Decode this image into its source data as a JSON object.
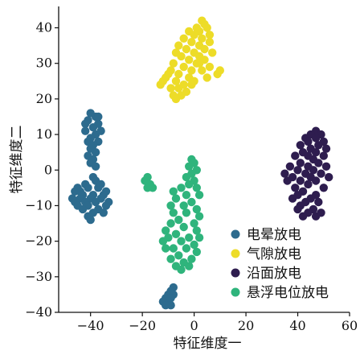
{
  "chart_data": {
    "type": "scatter",
    "title": "",
    "xlabel": "特征维度一",
    "ylabel": "特征维度二",
    "xlim": [
      -52,
      60
    ],
    "ylim": [
      -40,
      46
    ],
    "xticks": [
      -40,
      -20,
      0,
      20,
      40,
      60
    ],
    "yticks": [
      -40,
      -30,
      -20,
      -10,
      0,
      10,
      20,
      30,
      40
    ],
    "xtick_labels": [
      "−40",
      "−20",
      "0",
      "20",
      "40",
      "60"
    ],
    "ytick_labels": [
      "−40",
      "−30",
      "−20",
      "−10",
      "0",
      "10",
      "20",
      "30",
      "40"
    ],
    "grid": false,
    "legend_position": "lower-right",
    "series": [
      {
        "name": "电晕放电",
        "color": "#2d6b8e",
        "points": [
          [
            -40,
            16
          ],
          [
            -38,
            15
          ],
          [
            -41,
            14
          ],
          [
            -37,
            13
          ],
          [
            -39,
            12
          ],
          [
            -42,
            11
          ],
          [
            -38,
            10
          ],
          [
            -40,
            9
          ],
          [
            -41,
            8
          ],
          [
            -37,
            8
          ],
          [
            -39,
            7
          ],
          [
            -40,
            6
          ],
          [
            -38,
            5
          ],
          [
            -41,
            4
          ],
          [
            -39,
            3
          ],
          [
            -40,
            2
          ],
          [
            -38,
            1
          ],
          [
            -37,
            15
          ],
          [
            -42,
            13
          ],
          [
            -36,
            11
          ],
          [
            -39,
            -2
          ],
          [
            -38,
            -3
          ],
          [
            -42,
            -4
          ],
          [
            -45,
            -5
          ],
          [
            -41,
            -5
          ],
          [
            -37,
            -5
          ],
          [
            -34,
            -6
          ],
          [
            -46,
            -6
          ],
          [
            -43,
            -7
          ],
          [
            -39,
            -7
          ],
          [
            -35,
            -7
          ],
          [
            -47,
            -8
          ],
          [
            -44,
            -8
          ],
          [
            -40,
            -8
          ],
          [
            -36,
            -8
          ],
          [
            -33,
            -9
          ],
          [
            -46,
            -9
          ],
          [
            -42,
            -9
          ],
          [
            -38,
            -9
          ],
          [
            -34,
            -10
          ],
          [
            -45,
            -10
          ],
          [
            -41,
            -10
          ],
          [
            -37,
            -11
          ],
          [
            -43,
            -11
          ],
          [
            -39,
            -12
          ],
          [
            -35,
            -12
          ],
          [
            -41,
            -13
          ],
          [
            -40,
            -14
          ],
          [
            -44,
            -6
          ],
          [
            -36,
            -4
          ]
        ]
      },
      {
        "name": "气隙放电",
        "color": "#eddc28",
        "points": [
          [
            3,
            42
          ],
          [
            4,
            41
          ],
          [
            1,
            40
          ],
          [
            5,
            40
          ],
          [
            2,
            39
          ],
          [
            -2,
            39
          ],
          [
            6,
            38
          ],
          [
            0,
            38
          ],
          [
            -4,
            37
          ],
          [
            3,
            37
          ],
          [
            -1,
            36
          ],
          [
            6,
            36
          ],
          [
            2,
            35
          ],
          [
            -6,
            35
          ],
          [
            4,
            34
          ],
          [
            -3,
            34
          ],
          [
            0,
            33
          ],
          [
            -7,
            33
          ],
          [
            7,
            33
          ],
          [
            2,
            32
          ],
          [
            -5,
            32
          ],
          [
            -2,
            31
          ],
          [
            4,
            31
          ],
          [
            -8,
            30
          ],
          [
            1,
            30
          ],
          [
            -4,
            29
          ],
          [
            6,
            29
          ],
          [
            -1,
            28
          ],
          [
            -9,
            28
          ],
          [
            3,
            28
          ],
          [
            -6,
            27
          ],
          [
            9,
            27
          ],
          [
            -2,
            26
          ],
          [
            -11,
            26
          ],
          [
            0,
            25
          ],
          [
            -7,
            25
          ],
          [
            -12,
            25
          ],
          [
            -4,
            24
          ],
          [
            -1,
            24
          ],
          [
            -9,
            23
          ],
          [
            -6,
            23
          ],
          [
            -3,
            22
          ],
          [
            -8,
            21
          ],
          [
            -5,
            21
          ],
          [
            -7,
            20
          ],
          [
            2,
            30
          ],
          [
            -10,
            27
          ],
          [
            5,
            26
          ],
          [
            10,
            28
          ],
          [
            -13,
            24
          ]
        ]
      },
      {
        "name": "沿面放电",
        "color": "#2e1d4f",
        "points": [
          [
            47,
            11
          ],
          [
            45,
            10
          ],
          [
            49,
            10
          ],
          [
            43,
            9
          ],
          [
            47,
            9
          ],
          [
            50,
            8
          ],
          [
            44,
            8
          ],
          [
            41,
            7
          ],
          [
            48,
            7
          ],
          [
            45,
            6
          ],
          [
            51,
            6
          ],
          [
            42,
            5
          ],
          [
            47,
            5
          ],
          [
            39,
            4
          ],
          [
            44,
            4
          ],
          [
            50,
            4
          ],
          [
            46,
            3
          ],
          [
            41,
            2
          ],
          [
            48,
            2
          ],
          [
            37,
            1
          ],
          [
            44,
            1
          ],
          [
            51,
            1
          ],
          [
            40,
            0
          ],
          [
            46,
            0
          ],
          [
            35,
            -1
          ],
          [
            43,
            -1
          ],
          [
            49,
            -1
          ],
          [
            38,
            -2
          ],
          [
            45,
            -2
          ],
          [
            41,
            -3
          ],
          [
            47,
            -3
          ],
          [
            36,
            -3
          ],
          [
            44,
            -4
          ],
          [
            39,
            -5
          ],
          [
            50,
            -5
          ],
          [
            42,
            -6
          ],
          [
            47,
            -7
          ],
          [
            40,
            -7
          ],
          [
            45,
            -8
          ],
          [
            43,
            -9
          ],
          [
            48,
            -9
          ],
          [
            41,
            -10
          ],
          [
            46,
            -11
          ],
          [
            44,
            -12
          ],
          [
            47,
            -13
          ],
          [
            42,
            -13
          ],
          [
            49,
            -12
          ],
          [
            38,
            -8
          ],
          [
            52,
            -2
          ],
          [
            40,
            -11
          ]
        ]
      },
      {
        "name": "悬浮电位放电",
        "color": "#2fb47c",
        "points": [
          [
            -1,
            3
          ],
          [
            0,
            2
          ],
          [
            -2,
            1
          ],
          [
            1,
            0
          ],
          [
            -1,
            -1
          ],
          [
            -3,
            -2
          ],
          [
            0,
            -3
          ],
          [
            -2,
            -4
          ],
          [
            -5,
            -5
          ],
          [
            1,
            -5
          ],
          [
            -8,
            -6
          ],
          [
            -3,
            -7
          ],
          [
            2,
            -7
          ],
          [
            -7,
            -8
          ],
          [
            -1,
            -9
          ],
          [
            -9,
            -10
          ],
          [
            -4,
            -10
          ],
          [
            1,
            -11
          ],
          [
            -8,
            -12
          ],
          [
            -3,
            -12
          ],
          [
            2,
            -13
          ],
          [
            -6,
            -14
          ],
          [
            0,
            -15
          ],
          [
            -9,
            -15
          ],
          [
            -4,
            -16
          ],
          [
            -11,
            -17
          ],
          [
            1,
            -17
          ],
          [
            -7,
            -18
          ],
          [
            -2,
            -19
          ],
          [
            -10,
            -19
          ],
          [
            -5,
            -20
          ],
          [
            0,
            -21
          ],
          [
            -8,
            -22
          ],
          [
            -3,
            -22
          ],
          [
            -11,
            -22
          ],
          [
            1,
            -23
          ],
          [
            -6,
            -24
          ],
          [
            -1,
            -25
          ],
          [
            -9,
            -25
          ],
          [
            -4,
            -26
          ],
          [
            -7,
            -27
          ],
          [
            -2,
            -27
          ],
          [
            -5,
            -28
          ],
          [
            -12,
            -20
          ],
          [
            2,
            -19
          ],
          [
            -18,
            -2
          ],
          [
            -19,
            -3
          ],
          [
            -17,
            -4
          ],
          [
            -18,
            -5
          ],
          [
            -16,
            -5
          ]
        ]
      },
      {
        "name": "",
        "color": "#2d6b8e",
        "points": [
          [
            -8,
            -33
          ],
          [
            -9,
            -34
          ],
          [
            -10,
            -35
          ],
          [
            -8,
            -35
          ],
          [
            -11,
            -36
          ],
          [
            -9,
            -36
          ],
          [
            -10,
            -37
          ],
          [
            -12,
            -37
          ],
          [
            -9,
            -38
          ],
          [
            -11,
            -38
          ]
        ]
      }
    ],
    "legend": [
      {
        "label": "电晕放电",
        "color": "#2d6b8e"
      },
      {
        "label": "气隙放电",
        "color": "#eddc28"
      },
      {
        "label": "沿面放电",
        "color": "#2e1d4f"
      },
      {
        "label": "悬浮电位放电",
        "color": "#2fb47c"
      }
    ]
  }
}
